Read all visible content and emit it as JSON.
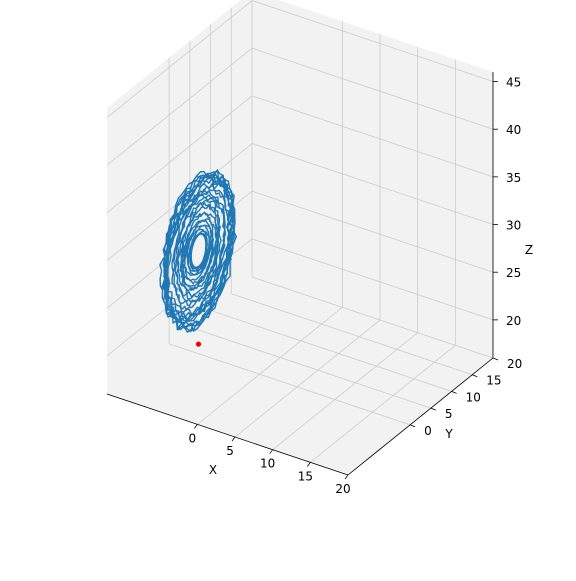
{
  "chart_data": {
    "type": "line-3d",
    "title": "",
    "xlabel": "X",
    "ylabel": "Y",
    "zlabel": "Z",
    "xlim": [
      -12,
      20
    ],
    "ylim": [
      -15,
      20
    ],
    "zlim": [
      16,
      46
    ],
    "x_ticks": [
      0,
      5,
      10,
      15,
      20
    ],
    "y_ticks": [
      0,
      5,
      10,
      15,
      20
    ],
    "z_ticks": [
      20,
      25,
      30,
      35,
      40,
      45
    ],
    "grid": true,
    "series": [
      {
        "kind": "trajectory",
        "color": "#1f77b4",
        "center": {
          "x": -7,
          "y": -2,
          "z": 27.8
        },
        "radius_min": 1.6,
        "radius_max": 8.0,
        "turns": 28,
        "plane_axes": [
          "y",
          "z"
        ]
      },
      {
        "kind": "marker",
        "color": "#ff0000",
        "points": [
          {
            "x": -7,
            "y": -2,
            "z": 18.0
          }
        ]
      }
    ],
    "colors": {
      "pane": "#f2f2f2",
      "grid": "#cccccc",
      "line": "#1f77b4",
      "marker": "#ff0000"
    }
  }
}
